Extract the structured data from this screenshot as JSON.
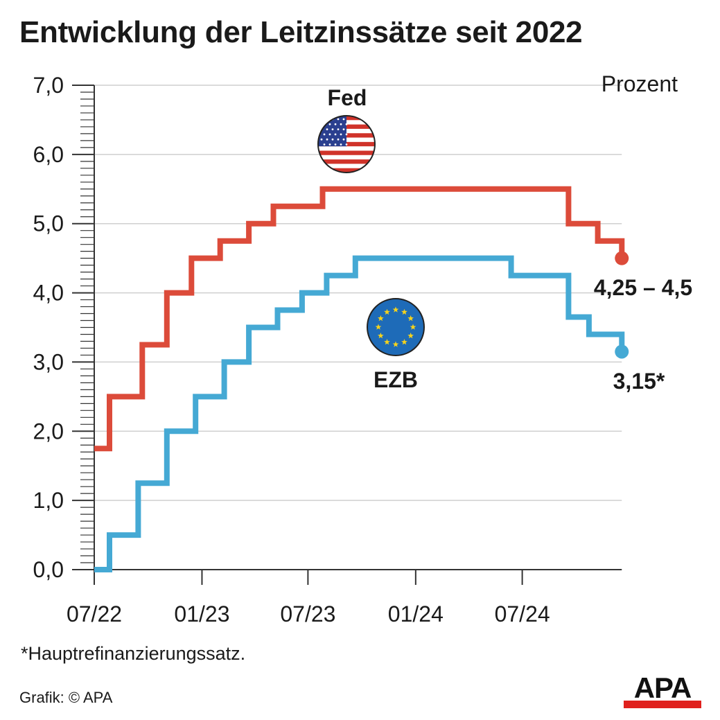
{
  "title": "Entwicklung der Leitzinssätze seit 2022",
  "footnote": "*Hauptrefinanzierungssatz.",
  "credit": "Grafik: © APA",
  "logo_text": "APA",
  "colors": {
    "fed": "#dc4b3a",
    "ezb": "#45a9d4",
    "grid": "#cfcfcf",
    "axis": "#333333",
    "logo_red": "#e0211d"
  },
  "chart_data": {
    "type": "line",
    "step": true,
    "unit_label": "Prozent",
    "x_tick_labels": [
      "07/22",
      "01/23",
      "07/23",
      "01/24",
      "07/24"
    ],
    "x_range": [
      "2022-07",
      "2024-12"
    ],
    "y_tick_labels": [
      "0,0",
      "1,0",
      "2,0",
      "3,0",
      "4,0",
      "5,0",
      "6,0",
      "7,0"
    ],
    "ylim": [
      0,
      7
    ],
    "grid": true,
    "series": [
      {
        "name": "Fed",
        "color": "#dc4b3a",
        "icon": "us-flag-icon",
        "end_label": "4,25 – 4,5",
        "points": [
          [
            "2022-07-01",
            1.75
          ],
          [
            "2022-07-27",
            2.5
          ],
          [
            "2022-09-21",
            3.25
          ],
          [
            "2022-11-02",
            4.0
          ],
          [
            "2022-12-14",
            4.5
          ],
          [
            "2023-02-01",
            4.75
          ],
          [
            "2023-03-22",
            5.0
          ],
          [
            "2023-05-03",
            5.25
          ],
          [
            "2023-07-26",
            5.5
          ],
          [
            "2024-09-18",
            5.0
          ],
          [
            "2024-11-07",
            4.75
          ],
          [
            "2024-12-18",
            4.5
          ]
        ]
      },
      {
        "name": "EZB",
        "color": "#45a9d4",
        "icon": "eu-flag-icon",
        "end_label": "3,15*",
        "points": [
          [
            "2022-07-01",
            0.0
          ],
          [
            "2022-07-27",
            0.5
          ],
          [
            "2022-09-14",
            1.25
          ],
          [
            "2022-11-02",
            2.0
          ],
          [
            "2022-12-21",
            2.5
          ],
          [
            "2023-02-08",
            3.0
          ],
          [
            "2023-03-22",
            3.5
          ],
          [
            "2023-05-10",
            3.75
          ],
          [
            "2023-06-21",
            4.0
          ],
          [
            "2023-08-02",
            4.25
          ],
          [
            "2023-09-20",
            4.5
          ],
          [
            "2024-06-12",
            4.25
          ],
          [
            "2024-09-18",
            3.65
          ],
          [
            "2024-10-23",
            3.4
          ],
          [
            "2024-12-18",
            3.15
          ]
        ]
      }
    ]
  }
}
